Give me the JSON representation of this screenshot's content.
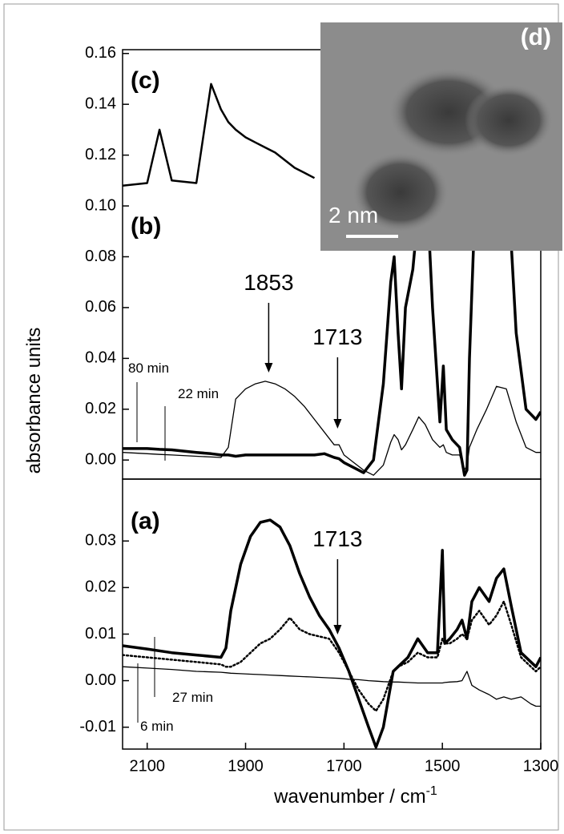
{
  "chart_data": [
    {
      "type": "line",
      "panel_label": "(b)",
      "ylabel": "absorbance units",
      "xlim": [
        2150,
        1300
      ],
      "ylim": [
        -0.0075,
        0.1615
      ],
      "yticks": [
        {
          "value": 0,
          "label": "0.00"
        },
        0.02,
        0.04,
        0.06,
        0.08,
        {
          "value": 0.1,
          "label": "0.10"
        },
        0.12,
        0.14,
        0.16
      ],
      "x": [
        2150,
        2100,
        2075,
        2050,
        2000,
        1970,
        1950,
        1935,
        1920,
        1900,
        1880,
        1860,
        1840,
        1820,
        1800,
        1780,
        1760,
        1740,
        1720,
        1710,
        1700,
        1680,
        1660,
        1640,
        1620,
        1605,
        1598,
        1590,
        1583,
        1575,
        1560,
        1548,
        1535,
        1520,
        1505,
        1498,
        1492,
        1480,
        1465,
        1455,
        1450,
        1445,
        1430,
        1410,
        1390,
        1370,
        1350,
        1330,
        1310,
        1300
      ],
      "series": [
        {
          "name": "(c)",
          "color": "#000000",
          "style": "medium",
          "values": [
            0.108,
            0.109,
            0.13,
            0.11,
            0.109,
            0.148,
            0.138,
            0.133,
            0.13,
            0.127,
            0.125,
            0.123,
            0.121,
            0.118,
            0.115,
            0.113,
            0.111,
            null,
            null,
            null,
            null,
            null,
            null,
            null,
            null,
            null,
            null,
            null,
            null,
            null,
            null,
            null,
            null,
            null,
            null,
            null,
            null,
            null,
            null,
            null,
            null,
            null,
            null,
            null,
            null,
            null,
            null,
            null,
            null,
            null
          ]
        },
        {
          "name": "80 min",
          "color": "#000000",
          "style": "thick",
          "values": [
            0.0045,
            0.0045,
            0.0042,
            0.004,
            0.003,
            0.0025,
            0.002,
            0.002,
            0.0015,
            0.002,
            0.002,
            0.002,
            0.002,
            0.002,
            0.002,
            0.002,
            0.002,
            0.0025,
            0.001,
            0.0005,
            -0.001,
            -0.003,
            -0.005,
            0.0,
            0.03,
            0.07,
            0.08,
            0.05,
            0.028,
            0.06,
            0.075,
            0.1,
            0.12,
            0.06,
            0.015,
            0.037,
            0.012,
            0.008,
            0.005,
            -0.006,
            -0.004,
            0.04,
            0.12,
            0.14,
            0.14,
            0.12,
            0.05,
            0.02,
            0.016,
            0.019
          ]
        },
        {
          "name": "22 min",
          "color": "#000000",
          "style": "thin",
          "values": [
            0.003,
            0.0025,
            0.0022,
            0.002,
            0.0015,
            0.0012,
            0.001,
            0.005,
            0.024,
            0.028,
            0.03,
            0.031,
            0.03,
            0.028,
            0.025,
            0.021,
            0.016,
            0.011,
            0.006,
            0.006,
            0.002,
            -0.001,
            -0.004,
            -0.006,
            -0.002,
            0.007,
            0.01,
            0.008,
            0.004,
            0.006,
            0.012,
            0.017,
            0.014,
            0.008,
            0.005,
            0.006,
            0.003,
            0.002,
            0.002,
            -0.004,
            -0.002,
            0.005,
            0.012,
            0.02,
            0.029,
            0.028,
            0.015,
            0.005,
            0.003,
            0.003
          ]
        }
      ],
      "annotations": [
        {
          "text": "1853",
          "x": 1853
        },
        {
          "text": "1713",
          "x": 1713
        }
      ]
    },
    {
      "type": "line",
      "panel_label": "(a)",
      "xlabel": "wavenumber / cm",
      "xlabel_superscript": "-1",
      "xlim": [
        2150,
        1300
      ],
      "ylim": [
        -0.0147,
        0.0433
      ],
      "xticks": [
        2100,
        1900,
        1700,
        1500,
        1300
      ],
      "yticks": [
        -0.01,
        {
          "value": 0,
          "label": "0.00"
        },
        0.01,
        0.02,
        0.03
      ],
      "x": [
        2150,
        2100,
        2050,
        2000,
        1950,
        1940,
        1930,
        1910,
        1890,
        1870,
        1850,
        1830,
        1810,
        1790,
        1770,
        1750,
        1730,
        1710,
        1690,
        1670,
        1650,
        1635,
        1620,
        1600,
        1590,
        1570,
        1550,
        1530,
        1510,
        1500,
        1495,
        1485,
        1470,
        1460,
        1450,
        1440,
        1425,
        1405,
        1390,
        1375,
        1360,
        1340,
        1320,
        1310,
        1300
      ],
      "series": [
        {
          "name": "27 min",
          "color": "#000000",
          "style": "thick",
          "values": [
            0.0075,
            0.0068,
            0.006,
            0.0055,
            0.005,
            0.007,
            0.015,
            0.025,
            0.031,
            0.034,
            0.0345,
            0.033,
            0.029,
            0.023,
            0.018,
            0.014,
            0.011,
            0.007,
            0.002,
            -0.004,
            -0.01,
            -0.0143,
            -0.01,
            0.002,
            0.003,
            0.005,
            0.009,
            0.006,
            0.006,
            0.028,
            0.008,
            0.009,
            0.011,
            0.013,
            0.009,
            0.017,
            0.02,
            0.017,
            0.022,
            0.024,
            0.016,
            0.006,
            0.004,
            0.003,
            0.005
          ]
        },
        {
          "color": "#000000",
          "style": "dotted",
          "values": [
            0.0055,
            0.005,
            0.0045,
            0.004,
            0.0035,
            0.003,
            0.003,
            0.004,
            0.006,
            0.008,
            0.009,
            0.011,
            0.0135,
            0.011,
            0.01,
            0.0095,
            0.009,
            0.006,
            0.002,
            -0.002,
            -0.005,
            -0.0065,
            -0.004,
            0.002,
            0.003,
            0.004,
            0.006,
            0.005,
            0.005,
            0.009,
            0.008,
            0.008,
            0.009,
            0.01,
            0.009,
            0.013,
            0.015,
            0.012,
            0.014,
            0.017,
            0.012,
            0.005,
            0.003,
            0.002,
            0.003
          ]
        },
        {
          "name": "6 min",
          "color": "#000000",
          "style": "thin",
          "values": [
            0.003,
            0.0027,
            0.0024,
            0.002,
            0.0018,
            0.0017,
            0.0016,
            0.0015,
            0.0014,
            0.0013,
            0.0012,
            0.0011,
            0.001,
            0.0009,
            0.0008,
            0.0007,
            0.0006,
            0.0005,
            0.0003,
            0.0002,
            0.0,
            -0.0001,
            -0.0002,
            -0.0003,
            -0.0003,
            -0.0004,
            -0.0005,
            -0.0005,
            -0.0005,
            -0.0005,
            -0.0004,
            -0.0003,
            -0.0002,
            0.0,
            0.002,
            -0.001,
            -0.002,
            -0.003,
            -0.004,
            -0.0035,
            -0.004,
            -0.0035,
            -0.005,
            -0.0055,
            -0.0055
          ]
        }
      ],
      "annotations": [
        {
          "text": "1713",
          "x": 1713
        }
      ]
    }
  ],
  "inset": {
    "label": "(d)",
    "scale_bar": "2 nm"
  }
}
